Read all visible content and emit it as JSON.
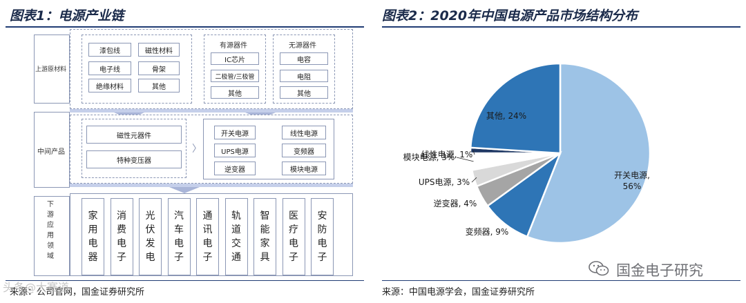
{
  "fig1": {
    "title": "图表1：电源产业链",
    "source": "来源：公司官网，国金证券研究所",
    "upstream_label": "上游原材料",
    "midstream_label": "中间产品",
    "downstream_label": "下游应用领域",
    "raw_materials": [
      "漆包线",
      "磁性材料",
      "电子线",
      "骨架",
      "绝缘材料",
      "其他"
    ],
    "active": {
      "title": "有源器件",
      "items": [
        "IC芯片",
        "二极管/三极管",
        "其他"
      ]
    },
    "passive": {
      "title": "无源器件",
      "items": [
        "电容",
        "电阻",
        "其他"
      ]
    },
    "mid_left": [
      "磁性元器件",
      "特种变压器"
    ],
    "mid_right": [
      "开关电源",
      "线性电源",
      "UPS电源",
      "变频器",
      "逆变器",
      "模块电源"
    ],
    "applications": [
      "家用电器",
      "消费电子",
      "光伏发电",
      "汽车电子",
      "通讯电子",
      "轨道交通",
      "智能家具",
      "医疗电子",
      "安防电子"
    ]
  },
  "fig2": {
    "title": "图表2：2020年中国电源产品市场结构分布",
    "source": "来源：中国电源学会，国金证券研究所"
  },
  "chart_data": {
    "type": "pie",
    "title": "2020年中国电源产品市场结构分布",
    "slices": [
      {
        "label": "开关电源",
        "value": 56,
        "text": "开关电源,\n56%",
        "color": "#9dc3e6"
      },
      {
        "label": "变频器",
        "value": 9,
        "text": "变频器, 9%",
        "color": "#2e75b6"
      },
      {
        "label": "逆变器",
        "value": 4,
        "text": "逆变器, 4%",
        "color": "#a5a5a5"
      },
      {
        "label": "UPS电源",
        "value": 3,
        "text": "UPS电源, 3%",
        "color": "#d9d9d9"
      },
      {
        "label": "模块电源",
        "value": 3,
        "text": "模块电源, 3%",
        "color": "#ffffff"
      },
      {
        "label": "线性电源",
        "value": 1,
        "text": "线性电源, 1%",
        "color": "#1f3864"
      },
      {
        "label": "其他",
        "value": 24,
        "text": "其他, 24%",
        "color": "#2e75b6"
      }
    ]
  },
  "watermark": {
    "text": "国金电子研究",
    "left_text": "头条@大赛道"
  }
}
